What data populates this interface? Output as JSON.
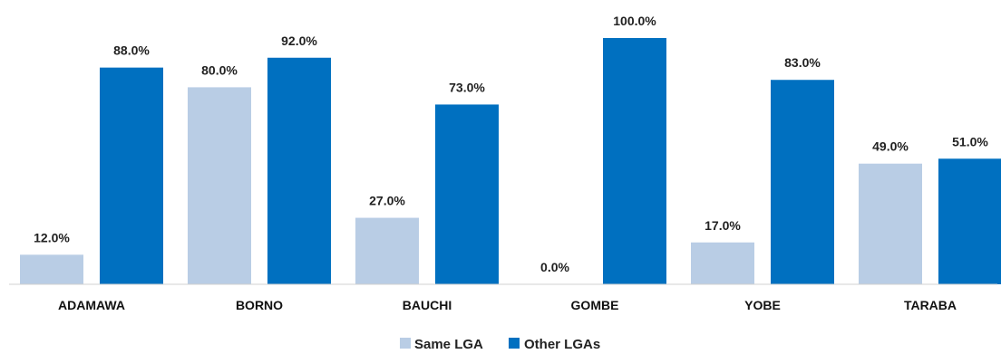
{
  "chart_data": {
    "type": "bar",
    "categories": [
      "ADAMAWA",
      "BORNO",
      "BAUCHI",
      "GOMBE",
      "YOBE",
      "TARABA"
    ],
    "series": [
      {
        "name": "Same LGA",
        "color": "#b9cde5",
        "values": [
          12.0,
          80.0,
          27.0,
          0.0,
          17.0,
          49.0
        ],
        "labels": [
          "12.0%",
          "80.0%",
          "27.0%",
          "0.0%",
          "17.0%",
          "49.0%"
        ]
      },
      {
        "name": "Other LGAs",
        "color": "#0070c0",
        "values": [
          88.0,
          92.0,
          73.0,
          100.0,
          83.0,
          51.0
        ],
        "labels": [
          "88.0%",
          "92.0%",
          "73.0%",
          "100.0%",
          "83.0%",
          "51.0%"
        ]
      }
    ],
    "ylim": [
      0,
      100
    ],
    "grid": false,
    "legend_position": "bottom-center",
    "title": "",
    "xlabel": "",
    "ylabel": ""
  }
}
